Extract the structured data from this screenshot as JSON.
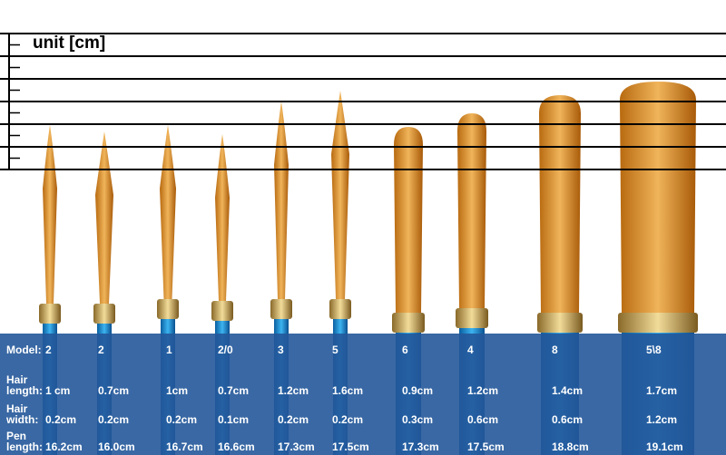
{
  "header": {
    "unit": "unit [cm]"
  },
  "table": {
    "rows": [
      {
        "label": "Model:",
        "values": [
          "2",
          "2",
          "1",
          "2/0",
          "3",
          "5",
          "6",
          "4",
          "8",
          "5\\8"
        ]
      },
      {
        "label": "Hair length:",
        "values": [
          "1 cm",
          "0.7cm",
          "1cm",
          "0.7cm",
          "1.2cm",
          "1.6cm",
          "0.9cm",
          "1.2cm",
          "1.4cm",
          "1.7cm"
        ]
      },
      {
        "label": "Hair width:",
        "values": [
          "0.2cm",
          "0.2cm",
          "0.2cm",
          "0.1cm",
          "0.2cm",
          "0.2cm",
          "0.3cm",
          "0.6cm",
          "0.6cm",
          "1.2cm"
        ]
      },
      {
        "label": "Pen length:",
        "values": [
          "16.2cm",
          "16.0cm",
          "16.7cm",
          "16.6cm",
          "17.3cm",
          "17.5cm",
          "17.3cm",
          "17.5cm",
          "18.8cm",
          "19.1cm"
        ]
      }
    ]
  }
}
